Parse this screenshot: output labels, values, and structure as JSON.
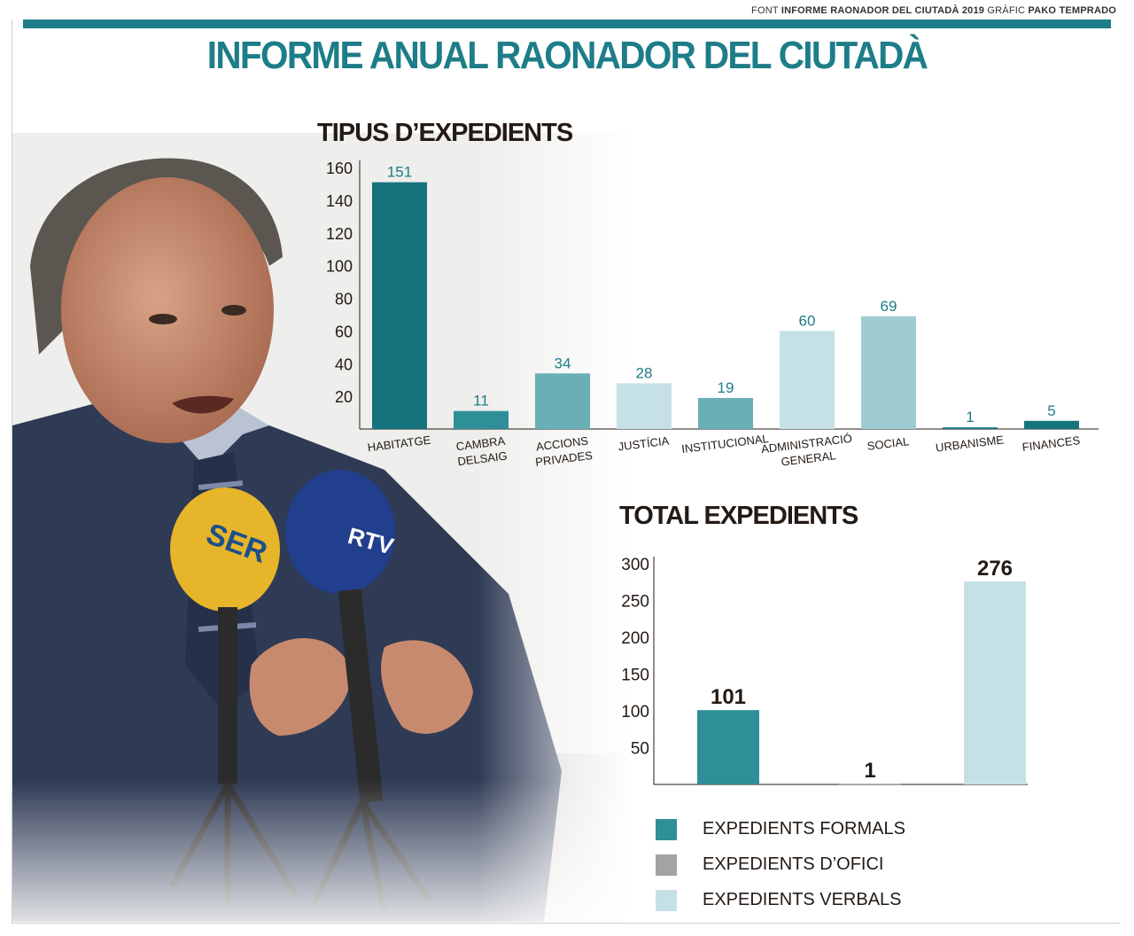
{
  "header": {
    "credit_font_label": "FONT",
    "credit_font_value": "INFORME RAONADOR DEL CIUTADÀ 2019",
    "credit_graphic_label": "GRÀFIC",
    "credit_graphic_value": "PAKO TEMPRADO",
    "title": "INFORME ANUAL RAONADOR DEL CIUTADÀ"
  },
  "colors": {
    "accent": "#1d7d88",
    "dark_teal": "#16737d",
    "medium_teal": "#3d9aa3",
    "light_teal": "#9ecbd2",
    "pale_teal": "#c6e1e6",
    "grey": "#a3a3a3",
    "text": "#231a14"
  },
  "chart_data": [
    {
      "type": "bar",
      "title": "TIPUS D’EXPEDIENTS",
      "categories": [
        [
          "HABITATGE"
        ],
        [
          "CAMBRA",
          "DELSAIG"
        ],
        [
          "ACCIONS",
          "PRIVADES"
        ],
        [
          "JUSTÍCIA"
        ],
        [
          "INSTITUCIONAL"
        ],
        [
          "ADMINISTRACIÓ",
          "GENERAL"
        ],
        [
          "SOCIAL"
        ],
        [
          "URBANISME"
        ],
        [
          "FINANCES"
        ]
      ],
      "values": [
        151,
        11,
        34,
        28,
        19,
        60,
        69,
        1,
        5
      ],
      "bar_colors": [
        "#16737d",
        "#2f8f98",
        "#6aaeb6",
        "#c6e1e6",
        "#6aaeb6",
        "#c6e1e6",
        "#9ecbd2",
        "#16737d",
        "#16737d"
      ],
      "yticks": [
        20,
        40,
        60,
        80,
        100,
        120,
        140,
        160
      ],
      "ylim": [
        0,
        160
      ],
      "grid": false
    },
    {
      "type": "bar",
      "title": "TOTAL EXPEDIENTS",
      "categories": [
        "EXPEDIENTS FORMALS",
        "EXPEDIENTS D’OFICI",
        "EXPEDIENTS VERBALS"
      ],
      "values": [
        101,
        1,
        276
      ],
      "bar_colors": [
        "#2f8f98",
        "#a3a3a3",
        "#c6e1e6"
      ],
      "yticks": [
        50,
        100,
        150,
        200,
        250,
        300
      ],
      "ylim": [
        0,
        300
      ],
      "legend": "bottom",
      "grid": false
    }
  ]
}
